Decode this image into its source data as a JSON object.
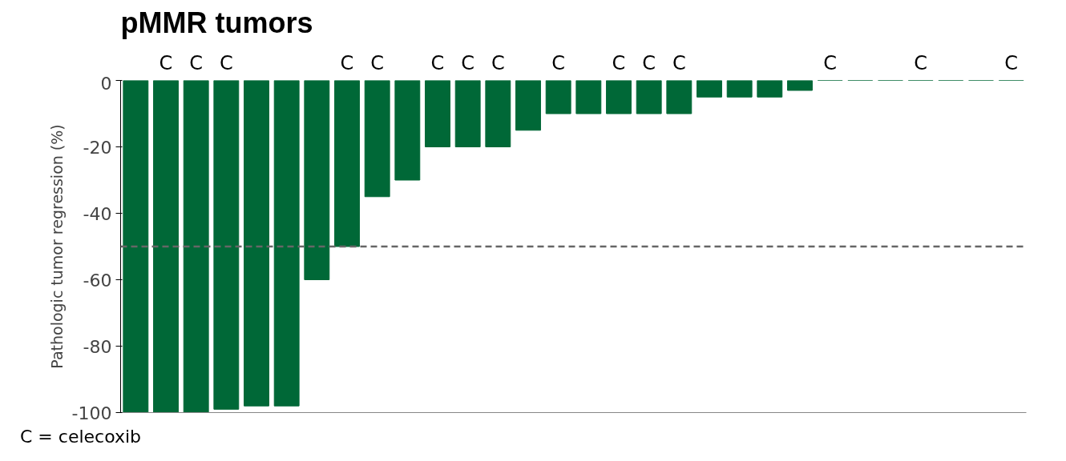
{
  "chart_data": {
    "type": "bar",
    "title": "pMMR tumors",
    "ylabel": "Pathologic tumor regression (%)",
    "categories": [
      null,
      null,
      null,
      null,
      null,
      null,
      null,
      null,
      null,
      null,
      null,
      null,
      null,
      null,
      null,
      null,
      null,
      null,
      null,
      null,
      null,
      null,
      null,
      null,
      null,
      null,
      null,
      null,
      null,
      null
    ],
    "values": [
      -100,
      -100,
      -100,
      -99,
      -98,
      -98,
      -60,
      -50,
      -35,
      -30,
      -20,
      -20,
      -20,
      -15,
      -10,
      -10,
      -10,
      -10,
      -10,
      -5,
      -5,
      -5,
      -3,
      0,
      0,
      0,
      0,
      0,
      0,
      0
    ],
    "value_labels": [
      null,
      "C",
      "C",
      "C",
      null,
      null,
      null,
      "C",
      "C",
      null,
      "C",
      "C",
      "C",
      null,
      "C",
      null,
      "C",
      "C",
      "C",
      null,
      null,
      null,
      null,
      "C",
      null,
      null,
      "C",
      null,
      null,
      "C"
    ],
    "color": "#006837",
    "ylim": [
      -100,
      0
    ],
    "yticks": [
      0,
      -20,
      -40,
      -60,
      -80,
      -100
    ],
    "ref_lines": [
      {
        "axis": "y",
        "value": -50,
        "color": "#666666",
        "line_style": "dashed"
      }
    ],
    "annotations": [
      "C = celecoxib"
    ],
    "tick_labels": "y",
    "grid": false
  }
}
